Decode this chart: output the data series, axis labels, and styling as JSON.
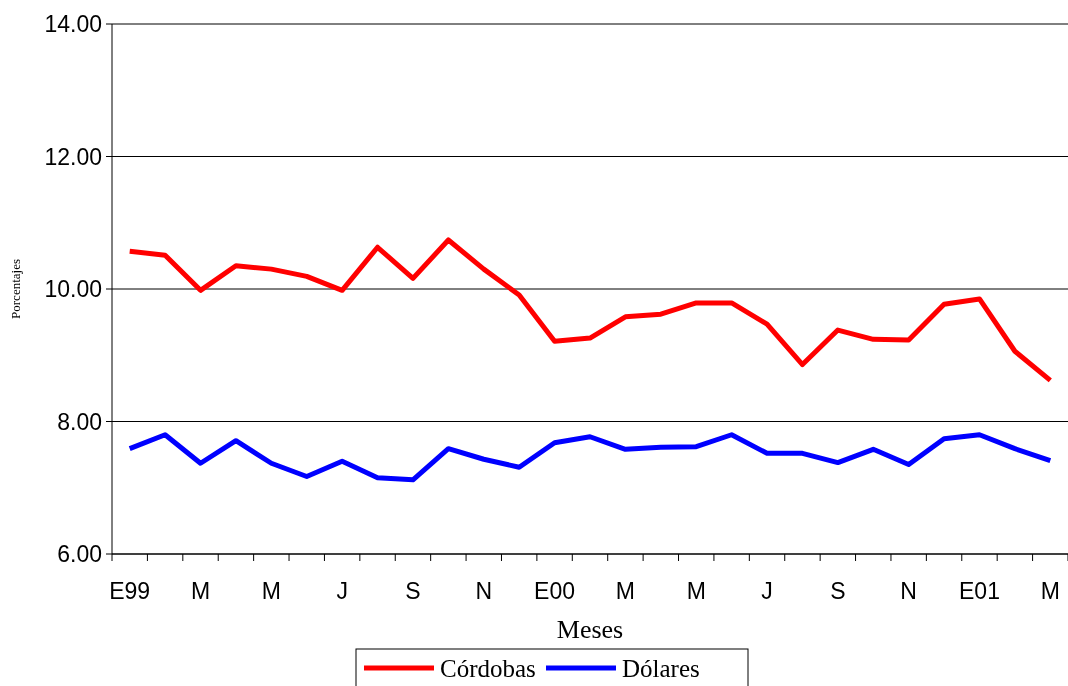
{
  "chart_data": {
    "type": "line",
    "xlabel": "Meses",
    "ylabel": "Porcentajes",
    "categories": [
      "E99",
      null,
      "M",
      null,
      "M",
      null,
      "J",
      null,
      "S",
      null,
      "N",
      null,
      "E00",
      null,
      "M",
      null,
      "M",
      null,
      "J",
      null,
      "S",
      null,
      "N",
      null,
      "E01",
      null,
      "M"
    ],
    "series": [
      {
        "name": "Córdobas",
        "color": "#ff0000",
        "values": [
          10.57,
          10.51,
          9.98,
          10.35,
          10.3,
          10.19,
          9.98,
          10.63,
          10.16,
          10.74,
          10.3,
          9.91,
          9.21,
          9.26,
          9.58,
          9.62,
          9.79,
          9.79,
          9.47,
          8.86,
          9.38,
          9.24,
          9.23,
          9.77,
          9.85,
          9.06,
          8.62
        ]
      },
      {
        "name": "Dólares",
        "color": "#0000ff",
        "values": [
          7.59,
          7.8,
          7.37,
          7.71,
          7.37,
          7.17,
          7.4,
          7.15,
          7.12,
          7.59,
          7.43,
          7.31,
          7.68,
          7.77,
          7.58,
          7.61,
          7.62,
          7.8,
          7.52,
          7.52,
          7.38,
          7.58,
          7.35,
          7.74,
          7.8,
          7.59,
          7.41
        ]
      }
    ],
    "ylim": [
      6,
      14
    ],
    "yticks": [
      {
        "value": 6,
        "label": "6.00"
      },
      {
        "value": 8,
        "label": "8.00"
      },
      {
        "value": 10,
        "label": "10.00"
      },
      {
        "value": 12,
        "label": "12.00"
      },
      {
        "value": 14,
        "label": "14.00"
      }
    ],
    "grid": "y",
    "legend": "bottom",
    "marker": "none",
    "line_style": "solid"
  }
}
